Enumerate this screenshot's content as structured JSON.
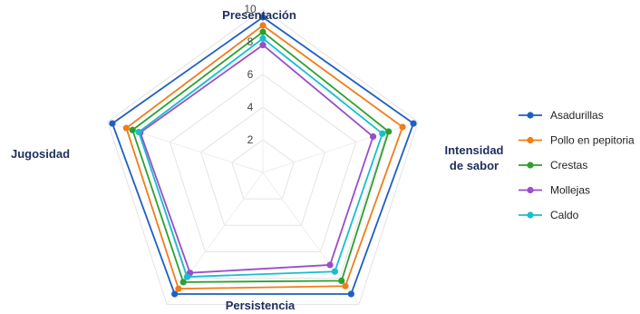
{
  "chart_data": {
    "type": "radar",
    "axes": [
      "Presentación",
      "Intensidad de sabor",
      "Persistencia",
      "Jugosidad"
    ],
    "categories": [
      "Presentación",
      "Intensidad de sabor",
      "Persistencia",
      "",
      "Jugosidad"
    ],
    "ticks": [
      "2",
      "4",
      "6",
      "8",
      "10"
    ],
    "rmax": 10,
    "grid": true,
    "legend_position": "right",
    "series": [
      {
        "name": "Asadurillas",
        "color": "#1f5fbf",
        "values": [
          9.5,
          9.7,
          9.2,
          9.2,
          9.7
        ]
      },
      {
        "name": "Pollo en pepitoria",
        "color": "#f07d1a",
        "values": [
          9.0,
          9.0,
          8.6,
          8.8,
          8.8
        ]
      },
      {
        "name": "Crestas",
        "color": "#2ca02c",
        "values": [
          8.6,
          8.1,
          8.2,
          8.3,
          8.4
        ]
      },
      {
        "name": "Mollejas",
        "color": "#9a4dc9",
        "values": [
          7.8,
          7.1,
          7.0,
          7.6,
          7.9
        ]
      },
      {
        "name": "Caldo",
        "color": "#17becf",
        "values": [
          8.2,
          7.7,
          7.5,
          7.9,
          8.0
        ]
      }
    ]
  }
}
